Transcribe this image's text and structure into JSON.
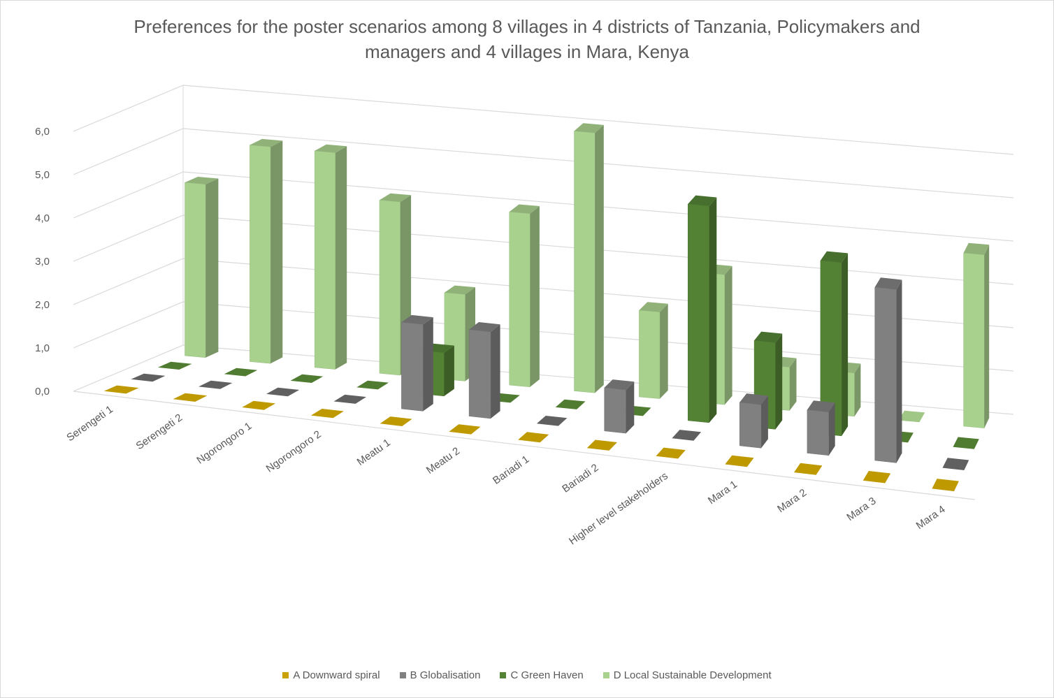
{
  "chart_data": {
    "type": "bar",
    "title_lines": [
      "Preferences for the poster scenarios among 8 villages in 4 districts of Tanzania, Policymakers and",
      "managers and 4 villages in Mara, Kenya"
    ],
    "categories": [
      "Serengeti 1",
      "Serengeti 2",
      "Ngorongoro 1",
      "Ngorongoro 2",
      "Meatu 1",
      "Meatu 2",
      "Bariadi 1",
      "Bariadi 2",
      "Higher level stakeholders",
      "Mara 1",
      "Mara 2",
      "Mara 3",
      "Mara 4"
    ],
    "series": [
      {
        "name": "A Downward spiral",
        "color": "#c9a100",
        "values": [
          0,
          0,
          0,
          0,
          0,
          0,
          0,
          0,
          0,
          0,
          0,
          0,
          0
        ]
      },
      {
        "name": "B Globalisation",
        "color": "#808080",
        "values": [
          0,
          0,
          0,
          0,
          2,
          2,
          0,
          1,
          0,
          1,
          1,
          4,
          0
        ]
      },
      {
        "name": "C Green Haven",
        "color": "#548235",
        "values": [
          0,
          0,
          0,
          0,
          1,
          0,
          0,
          0,
          5,
          2,
          4,
          0,
          0
        ]
      },
      {
        "name": "D Local Sustainable Development",
        "color": "#a9d18e",
        "values": [
          4,
          5,
          5,
          4,
          2,
          4,
          6,
          2,
          3,
          1,
          1,
          0,
          4
        ]
      }
    ],
    "y_ticks": [
      "0,0",
      "1,0",
      "2,0",
      "3,0",
      "4,0",
      "5,0",
      "6,0"
    ],
    "ylim": [
      0,
      6
    ],
    "grid": true,
    "legend_position": "bottom",
    "view": "3d-column"
  }
}
